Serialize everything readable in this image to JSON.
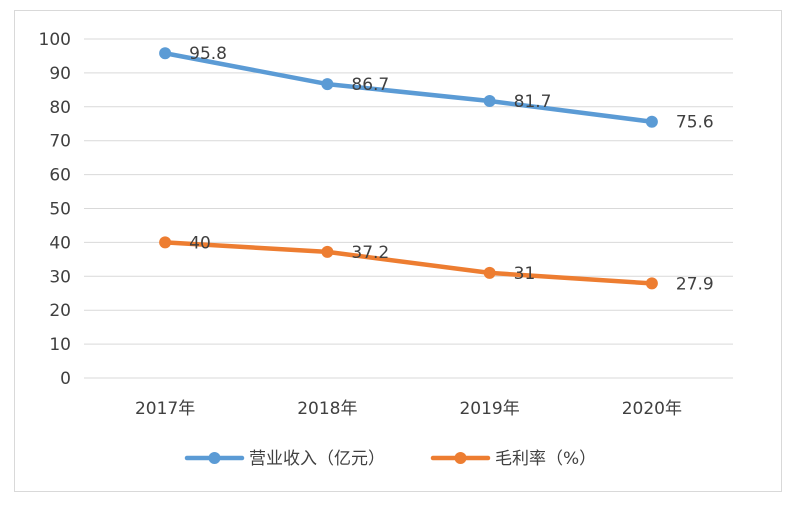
{
  "chart_data": {
    "type": "line",
    "categories": [
      "2017年",
      "2018年",
      "2019年",
      "2020年"
    ],
    "ylim": [
      0,
      100
    ],
    "yticks": [
      0,
      10,
      20,
      30,
      40,
      50,
      60,
      70,
      80,
      90,
      100
    ],
    "ytick_labels": [
      "0",
      "10",
      "20",
      "30",
      "40",
      "50",
      "60",
      "70",
      "80",
      "90",
      "100"
    ],
    "grid": true,
    "legend_position": "bottom",
    "series": [
      {
        "name": "营业收入（亿元）",
        "color": "#5b9bd5",
        "values": [
          95.8,
          86.7,
          81.7,
          75.6
        ],
        "labels": [
          "95.8",
          "86.7",
          "81.7",
          "75.6"
        ]
      },
      {
        "name": "毛利率（%）",
        "color": "#ed7d31",
        "values": [
          40,
          37.2,
          31,
          27.9
        ],
        "labels": [
          "40",
          "37.2",
          "31",
          "27.9"
        ]
      }
    ]
  }
}
